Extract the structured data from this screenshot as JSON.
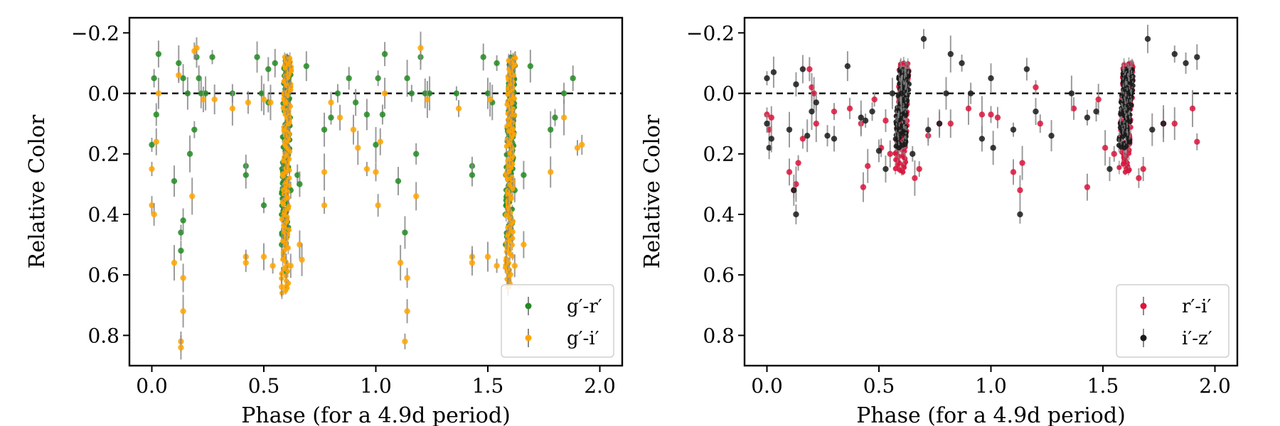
{
  "chart_data": [
    {
      "type": "scatter",
      "title": "",
      "xlabel": "Phase (for a 4.9d period)",
      "ylabel": "Relative Color",
      "xlim": [
        -0.1,
        2.1
      ],
      "ylim": [
        0.9,
        -0.25
      ],
      "y_inverted": true,
      "xticks": [
        0.0,
        0.5,
        1.0,
        1.5,
        2.0
      ],
      "xtick_labels": [
        "0.0",
        "0.5",
        "1.0",
        "1.5",
        "2.0"
      ],
      "yticks": [
        -0.2,
        0.0,
        0.2,
        0.4,
        0.6,
        0.8
      ],
      "ytick_labels": [
        "−0.2",
        "0.0",
        "0.2",
        "0.4",
        "0.6",
        "0.8"
      ],
      "reference_line": {
        "y": 0.0,
        "style": "dashed",
        "color": "#000000"
      },
      "legend_position": "lower right",
      "series": [
        {
          "name": "g′-r′",
          "color": "#228b22",
          "dense_band": [
            {
              "x0": 0.575,
              "x1": 0.625,
              "y_top": -0.12,
              "y_bottom": 0.48
            },
            {
              "x0": 1.575,
              "x1": 1.625,
              "y_top": -0.12,
              "y_bottom": 0.48
            }
          ],
          "points": [
            [
              0.0,
              0.17
            ],
            [
              0.01,
              -0.05
            ],
            [
              0.02,
              0.07
            ],
            [
              0.03,
              -0.13
            ],
            [
              0.1,
              0.29
            ],
            [
              0.12,
              -0.1
            ],
            [
              0.13,
              0.46
            ],
            [
              0.13,
              0.52
            ],
            [
              0.14,
              0.42
            ],
            [
              0.14,
              -0.05
            ],
            [
              0.16,
              0.0
            ],
            [
              0.17,
              0.2
            ],
            [
              0.19,
              0.12
            ],
            [
              0.2,
              -0.12
            ],
            [
              0.21,
              -0.05
            ],
            [
              0.22,
              0.0
            ],
            [
              0.24,
              0.0
            ],
            [
              0.27,
              -0.12
            ],
            [
              0.36,
              0.0
            ],
            [
              0.42,
              0.24
            ],
            [
              0.42,
              0.27
            ],
            [
              0.47,
              -0.12
            ],
            [
              0.49,
              0.0
            ],
            [
              0.5,
              0.37
            ],
            [
              0.52,
              0.03
            ],
            [
              0.52,
              -0.08
            ],
            [
              0.55,
              -0.1
            ],
            [
              0.58,
              0.5
            ],
            [
              0.6,
              0.59
            ],
            [
              0.62,
              0.32
            ],
            [
              0.65,
              0.27
            ],
            [
              0.66,
              0.3
            ],
            [
              0.69,
              -0.09
            ],
            [
              0.77,
              0.12
            ],
            [
              0.8,
              0.08
            ],
            [
              0.83,
              0.0
            ],
            [
              0.88,
              -0.05
            ],
            [
              0.91,
              0.03
            ],
            [
              0.96,
              0.07
            ],
            [
              1.0,
              0.17
            ],
            [
              1.01,
              -0.05
            ],
            [
              1.03,
              0.07
            ],
            [
              1.04,
              -0.13
            ],
            [
              1.1,
              0.29
            ],
            [
              1.13,
              0.46
            ],
            [
              1.14,
              -0.05
            ],
            [
              1.16,
              0.0
            ],
            [
              1.18,
              0.2
            ],
            [
              1.2,
              -0.12
            ],
            [
              1.22,
              0.0
            ],
            [
              1.24,
              0.0
            ],
            [
              1.36,
              0.0
            ],
            [
              1.43,
              0.24
            ],
            [
              1.43,
              0.27
            ],
            [
              1.48,
              -0.12
            ],
            [
              1.5,
              0.0
            ],
            [
              1.52,
              0.03
            ],
            [
              1.54,
              -0.1
            ],
            [
              1.58,
              0.5
            ],
            [
              1.62,
              0.32
            ],
            [
              1.66,
              0.27
            ],
            [
              1.69,
              -0.09
            ],
            [
              1.78,
              0.12
            ],
            [
              1.8,
              0.08
            ],
            [
              1.84,
              0.0
            ],
            [
              1.88,
              -0.05
            ]
          ]
        },
        {
          "name": "g′-i′",
          "color": "#ffa500",
          "dense_band": [
            {
              "x0": 0.575,
              "x1": 0.625,
              "y_top": -0.12,
              "y_bottom": 0.66
            },
            {
              "x0": 1.575,
              "x1": 1.625,
              "y_top": -0.12,
              "y_bottom": 0.63
            }
          ],
          "points": [
            [
              0.0,
              0.25
            ],
            [
              0.0,
              0.37
            ],
            [
              0.01,
              0.4
            ],
            [
              0.02,
              0.16
            ],
            [
              0.03,
              0.0
            ],
            [
              0.1,
              0.56
            ],
            [
              0.12,
              -0.06
            ],
            [
              0.13,
              0.82
            ],
            [
              0.13,
              0.84
            ],
            [
              0.14,
              0.61
            ],
            [
              0.14,
              0.72
            ],
            [
              0.18,
              0.34
            ],
            [
              0.19,
              -0.14
            ],
            [
              0.2,
              -0.15
            ],
            [
              0.23,
              0.02
            ],
            [
              0.28,
              0.02
            ],
            [
              0.36,
              0.05
            ],
            [
              0.42,
              0.54
            ],
            [
              0.42,
              0.56
            ],
            [
              0.43,
              0.03
            ],
            [
              0.5,
              0.54
            ],
            [
              0.5,
              0.02
            ],
            [
              0.53,
              0.03
            ],
            [
              0.54,
              0.57
            ],
            [
              0.58,
              0.64
            ],
            [
              0.62,
              0.57
            ],
            [
              0.66,
              0.5
            ],
            [
              0.67,
              0.55
            ],
            [
              0.77,
              0.26
            ],
            [
              0.77,
              0.37
            ],
            [
              0.8,
              0.03
            ],
            [
              0.84,
              0.08
            ],
            [
              0.9,
              0.12
            ],
            [
              0.92,
              0.18
            ],
            [
              0.96,
              0.25
            ],
            [
              1.0,
              0.26
            ],
            [
              1.01,
              0.37
            ],
            [
              1.02,
              0.16
            ],
            [
              1.04,
              0.0
            ],
            [
              1.11,
              0.56
            ],
            [
              1.13,
              0.82
            ],
            [
              1.14,
              0.61
            ],
            [
              1.14,
              0.72
            ],
            [
              1.18,
              0.34
            ],
            [
              1.2,
              -0.15
            ],
            [
              1.23,
              0.02
            ],
            [
              1.37,
              0.05
            ],
            [
              1.43,
              0.54
            ],
            [
              1.43,
              0.56
            ],
            [
              1.5,
              0.54
            ],
            [
              1.51,
              0.02
            ],
            [
              1.54,
              0.57
            ],
            [
              1.59,
              0.64
            ],
            [
              1.62,
              0.57
            ],
            [
              1.66,
              0.5
            ],
            [
              1.78,
              0.26
            ],
            [
              1.84,
              0.08
            ],
            [
              1.9,
              0.18
            ],
            [
              1.92,
              0.17
            ]
          ]
        }
      ]
    },
    {
      "type": "scatter",
      "title": "",
      "xlabel": "Phase (for a 4.9d period)",
      "ylabel": "Relative Color",
      "xlim": [
        -0.1,
        2.1
      ],
      "ylim": [
        0.9,
        -0.25
      ],
      "y_inverted": true,
      "xticks": [
        0.0,
        0.5,
        1.0,
        1.5,
        2.0
      ],
      "xtick_labels": [
        "0.0",
        "0.5",
        "1.0",
        "1.5",
        "2.0"
      ],
      "yticks": [
        -0.2,
        0.0,
        0.2,
        0.4,
        0.6,
        0.8
      ],
      "ytick_labels": [
        "−0.2",
        "0.0",
        "0.2",
        "0.4",
        "0.6",
        "0.8"
      ],
      "reference_line": {
        "y": 0.0,
        "style": "dashed",
        "color": "#000000"
      },
      "legend_position": "lower right",
      "series": [
        {
          "name": "r′-i′",
          "color": "#dc143c",
          "dense_band": [
            {
              "x0": 0.57,
              "x1": 0.64,
              "y_top": -0.1,
              "y_bottom": 0.26
            },
            {
              "x0": 1.57,
              "x1": 1.64,
              "y_top": -0.1,
              "y_bottom": 0.26
            }
          ],
          "points": [
            [
              0.0,
              0.07
            ],
            [
              0.01,
              0.12
            ],
            [
              0.02,
              0.08
            ],
            [
              0.1,
              0.26
            ],
            [
              0.12,
              0.32
            ],
            [
              0.13,
              0.3
            ],
            [
              0.14,
              0.23
            ],
            [
              0.16,
              0.15
            ],
            [
              0.19,
              -0.08
            ],
            [
              0.2,
              -0.02
            ],
            [
              0.21,
              0.0
            ],
            [
              0.22,
              0.1
            ],
            [
              0.3,
              0.06
            ],
            [
              0.37,
              0.05
            ],
            [
              0.42,
              0.1
            ],
            [
              0.43,
              0.31
            ],
            [
              0.45,
              0.24
            ],
            [
              0.48,
              0.02
            ],
            [
              0.51,
              0.18
            ],
            [
              0.53,
              0.09
            ],
            [
              0.55,
              0.2
            ],
            [
              0.6,
              0.15
            ],
            [
              0.66,
              0.28
            ],
            [
              0.68,
              0.25
            ],
            [
              0.72,
              0.14
            ],
            [
              0.77,
              0.1
            ],
            [
              0.82,
              0.1
            ],
            [
              0.9,
              0.05
            ],
            [
              0.96,
              0.07
            ],
            [
              1.0,
              0.07
            ],
            [
              1.03,
              0.08
            ],
            [
              1.1,
              0.26
            ],
            [
              1.13,
              0.32
            ],
            [
              1.14,
              0.23
            ],
            [
              1.2,
              -0.02
            ],
            [
              1.22,
              0.1
            ],
            [
              1.37,
              0.05
            ],
            [
              1.43,
              0.31
            ],
            [
              1.48,
              0.02
            ],
            [
              1.51,
              0.18
            ],
            [
              1.55,
              0.2
            ],
            [
              1.66,
              0.28
            ],
            [
              1.68,
              0.25
            ],
            [
              1.77,
              0.1
            ],
            [
              1.82,
              0.1
            ],
            [
              1.9,
              0.05
            ],
            [
              1.92,
              0.16
            ]
          ]
        },
        {
          "name": "i′-z′",
          "color": "#1a1a1a",
          "dense_band": [
            {
              "x0": 0.57,
              "x1": 0.64,
              "y_top": -0.08,
              "y_bottom": 0.18
            },
            {
              "x0": 1.57,
              "x1": 1.64,
              "y_top": -0.08,
              "y_bottom": 0.18
            }
          ],
          "points": [
            [
              0.0,
              -0.05
            ],
            [
              0.0,
              0.1
            ],
            [
              0.01,
              0.18
            ],
            [
              0.02,
              0.15
            ],
            [
              0.03,
              -0.07
            ],
            [
              0.1,
              0.12
            ],
            [
              0.12,
              0.32
            ],
            [
              0.13,
              0.4
            ],
            [
              0.13,
              -0.03
            ],
            [
              0.16,
              -0.08
            ],
            [
              0.18,
              0.14
            ],
            [
              0.2,
              0.06
            ],
            [
              0.22,
              0.03
            ],
            [
              0.27,
              0.14
            ],
            [
              0.3,
              0.15
            ],
            [
              0.36,
              -0.09
            ],
            [
              0.42,
              0.08
            ],
            [
              0.44,
              0.09
            ],
            [
              0.47,
              0.06
            ],
            [
              0.5,
              0.19
            ],
            [
              0.53,
              0.25
            ],
            [
              0.56,
              0.0
            ],
            [
              0.6,
              0.0
            ],
            [
              0.65,
              0.2
            ],
            [
              0.7,
              -0.18
            ],
            [
              0.72,
              0.12
            ],
            [
              0.77,
              0.1
            ],
            [
              0.8,
              0.0
            ],
            [
              0.82,
              -0.13
            ],
            [
              0.87,
              -0.1
            ],
            [
              0.91,
              0.0
            ],
            [
              0.96,
              0.15
            ],
            [
              1.0,
              -0.05
            ],
            [
              1.01,
              0.18
            ],
            [
              1.1,
              0.12
            ],
            [
              1.13,
              0.4
            ],
            [
              1.16,
              -0.08
            ],
            [
              1.2,
              0.06
            ],
            [
              1.27,
              0.14
            ],
            [
              1.36,
              0.0
            ],
            [
              1.43,
              0.08
            ],
            [
              1.47,
              0.06
            ],
            [
              1.53,
              0.25
            ],
            [
              1.7,
              -0.18
            ],
            [
              1.72,
              0.12
            ],
            [
              1.77,
              0.1
            ],
            [
              1.82,
              -0.13
            ],
            [
              1.87,
              -0.1
            ],
            [
              1.92,
              -0.12
            ]
          ]
        }
      ]
    }
  ]
}
